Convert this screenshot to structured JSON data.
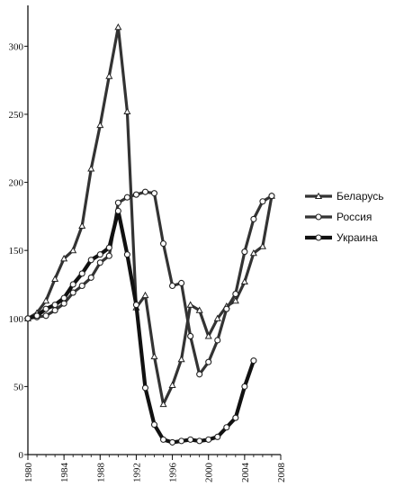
{
  "chart_data": {
    "type": "line",
    "title": "",
    "xlabel": "",
    "ylabel": "",
    "xlim": [
      1980,
      2008
    ],
    "ylim": [
      0,
      330
    ],
    "grid": false,
    "legend_position": "right",
    "x_ticks": [
      1980,
      1984,
      1988,
      1992,
      1996,
      2000,
      2004,
      2008
    ],
    "y_ticks": [
      0,
      50,
      100,
      150,
      200,
      250,
      300
    ],
    "series": [
      {
        "name": "Беларусь",
        "marker": "triangle",
        "color": "#333333",
        "x": [
          1980,
          1981,
          1982,
          1983,
          1984,
          1985,
          1986,
          1987,
          1988,
          1989,
          1990,
          1991,
          1992,
          1993,
          1994,
          1995,
          1996,
          1997,
          1998,
          1999,
          2000,
          2001,
          2002,
          2003,
          2004,
          2005,
          2006,
          2007
        ],
        "y": [
          100,
          104,
          113,
          129,
          144,
          150,
          168,
          210,
          242,
          278,
          314,
          252,
          108,
          117,
          72,
          37,
          51,
          70,
          110,
          106,
          87,
          100,
          109,
          113,
          127,
          148,
          153,
          190
        ]
      },
      {
        "name": "Россия",
        "marker": "circle",
        "color": "#333333",
        "x": [
          1980,
          1981,
          1982,
          1983,
          1984,
          1985,
          1986,
          1987,
          1988,
          1989,
          1990,
          1991,
          1992,
          1993,
          1994,
          1995,
          1996,
          1997,
          1998,
          1999,
          2000,
          2001,
          2002,
          2003,
          2004,
          2005,
          2006,
          2007
        ],
        "y": [
          100,
          101,
          102,
          106,
          111,
          119,
          124,
          130,
          141,
          146,
          185,
          189,
          191,
          193,
          192,
          155,
          124,
          126,
          87,
          59,
          68,
          84,
          107,
          118,
          149,
          173,
          186,
          190
        ]
      },
      {
        "name": "Украина",
        "marker": "circle",
        "color": "#111111",
        "x": [
          1980,
          1981,
          1982,
          1983,
          1984,
          1985,
          1986,
          1987,
          1988,
          1989,
          1990,
          1991,
          1992,
          1993,
          1994,
          1995,
          1996,
          1997,
          1998,
          1999,
          2000,
          2001,
          2002,
          2003,
          2004,
          2005
        ],
        "y": [
          100,
          102,
          107,
          110,
          115,
          125,
          133,
          143,
          147,
          152,
          179,
          147,
          110,
          49,
          22,
          11,
          9,
          10,
          11,
          10,
          11,
          13,
          20,
          27,
          50,
          69
        ]
      }
    ]
  }
}
